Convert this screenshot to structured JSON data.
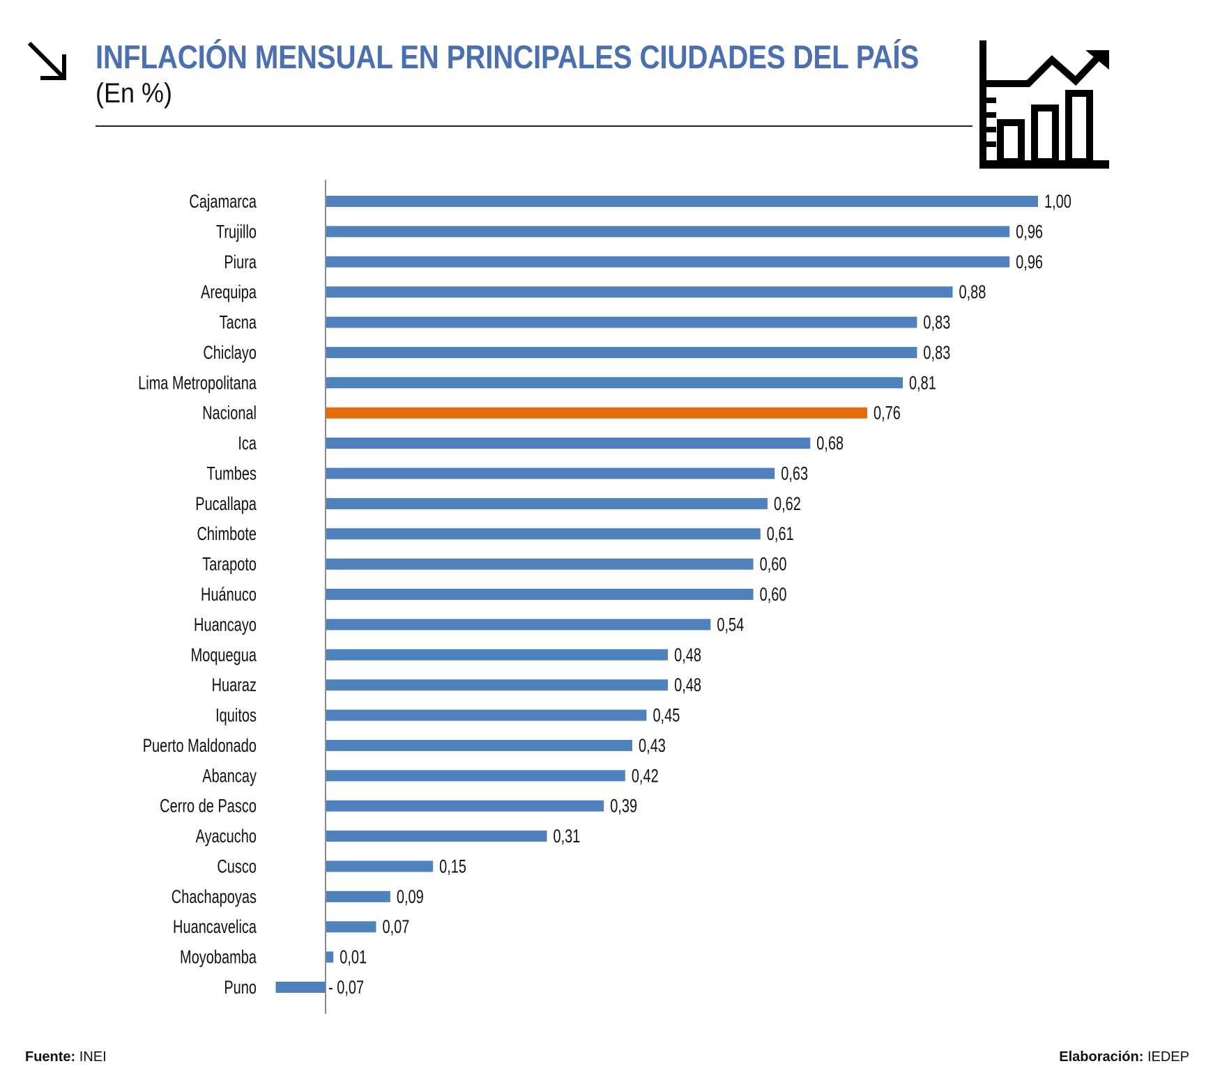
{
  "header": {
    "title": "INFLACIÓN MENSUAL EN PRINCIPALES CIUDADES DEL PAÍS",
    "subtitle": "(En %)",
    "left_icon": "arrow-down-right-icon",
    "right_icon": "bar-line-chart-icon"
  },
  "footer": {
    "source_label": "Fuente:",
    "source_value": "INEI",
    "credit_label": "Elaboración:",
    "credit_value": "IEDEP"
  },
  "colors": {
    "title": "#4a70b0",
    "bar": "#4f81bd",
    "highlight_bar": "#e36c0a",
    "axis": "#8c8c8c",
    "text": "#111111"
  },
  "chart_data": {
    "type": "bar",
    "orientation": "horizontal",
    "title": "INFLACIÓN MENSUAL EN PRINCIPALES CIUDADES DEL PAÍS",
    "subtitle": "(En %)",
    "xlabel": "",
    "ylabel": "",
    "grid": false,
    "legend": "none",
    "xlim": [
      -0.07,
      1.0
    ],
    "highlight": "Nacional",
    "categories": [
      "Cajamarca",
      "Trujillo",
      "Piura",
      "Arequipa",
      "Tacna",
      "Chiclayo",
      "Lima Metropolitana",
      "Nacional",
      "Ica",
      "Tumbes",
      "Pucallapa",
      "Chimbote",
      "Tarapoto",
      "Huánuco",
      "Huancayo",
      "Moquegua",
      "Huaraz",
      "Iquitos",
      "Puerto Maldonado",
      "Abancay",
      "Cerro de Pasco",
      "Ayacucho",
      "Cusco",
      "Chachapoyas",
      "Huancavelica",
      "Moyobamba",
      "Puno"
    ],
    "values": [
      1.0,
      0.96,
      0.96,
      0.88,
      0.83,
      0.83,
      0.81,
      0.76,
      0.68,
      0.63,
      0.62,
      0.61,
      0.6,
      0.6,
      0.54,
      0.48,
      0.48,
      0.45,
      0.43,
      0.42,
      0.39,
      0.31,
      0.15,
      0.09,
      0.07,
      0.01,
      -0.07
    ],
    "value_labels": [
      "1,00",
      "0,96",
      "0,96",
      "0,88",
      "0,83",
      "0,83",
      "0,81",
      "0,76",
      "0,68",
      "0,63",
      "0,62",
      "0,61",
      "0,60",
      "0,60",
      "0,54",
      "0,48",
      "0,48",
      "0,45",
      "0,43",
      "0,42",
      "0,39",
      "0,31",
      "0,15",
      "0,09",
      "0,07",
      "0,01",
      "- 0,07"
    ]
  }
}
